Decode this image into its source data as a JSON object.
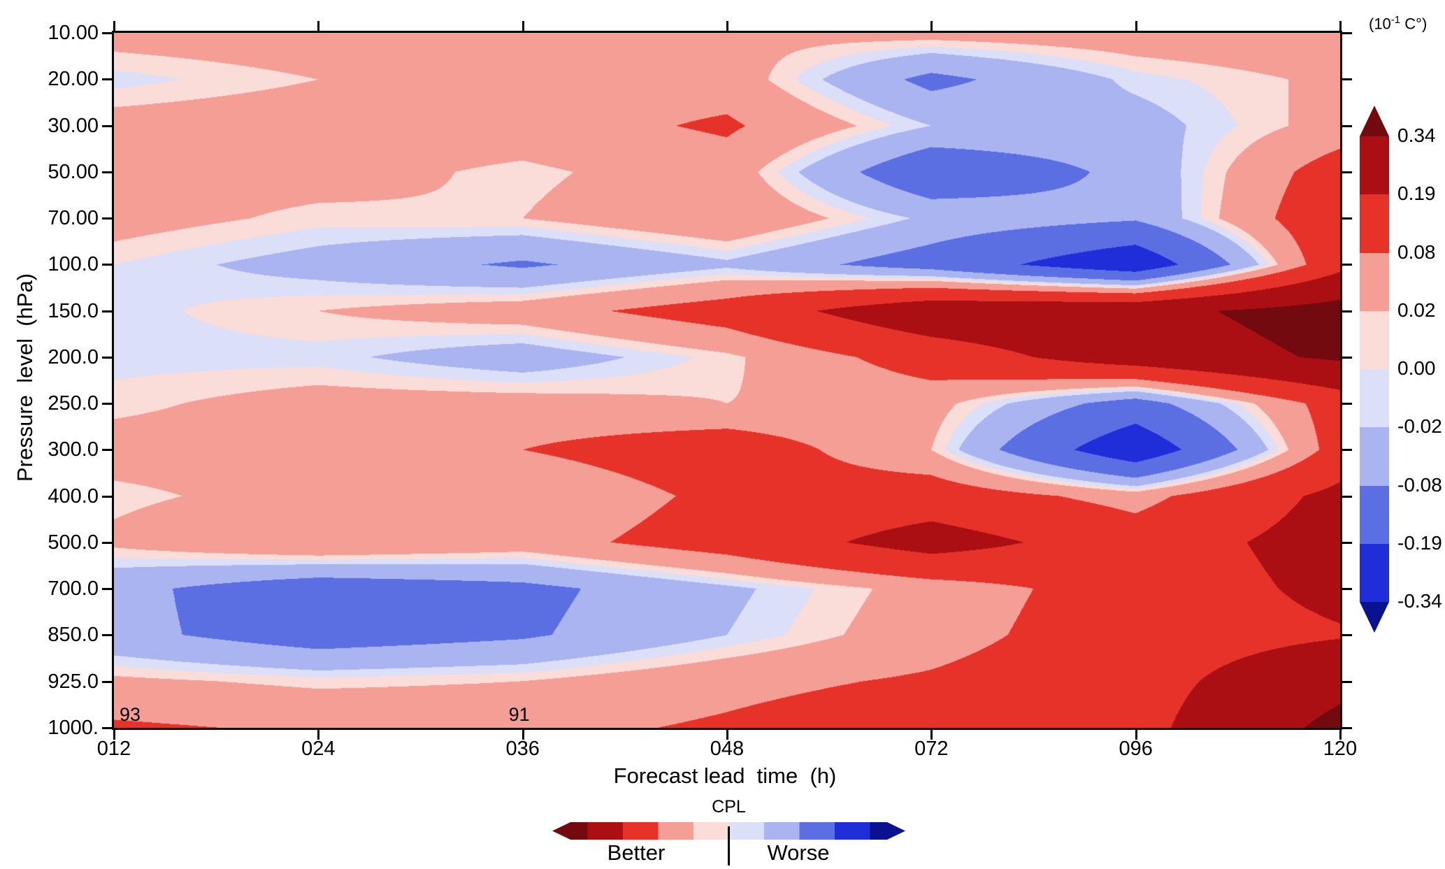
{
  "figure": {
    "background": "#ffffff",
    "unit": {
      "prefix": "(10",
      "exponent": "-1",
      "suffix": " C°)"
    },
    "legend": {
      "title": "CPL",
      "better": "Better",
      "worse": "Worse"
    }
  },
  "chart_data": {
    "type": "heatmap",
    "title": "",
    "xlabel": "Forecast lead  time  (h)",
    "ylabel": "Pressure  level  (hPa)",
    "x_ticks": [
      "012",
      "024",
      "036",
      "048",
      "072",
      "096",
      "120"
    ],
    "x_values_hours": [
      12,
      24,
      36,
      48,
      72,
      96,
      120
    ],
    "y_ticks": [
      "10.00",
      "20.00",
      "30.00",
      "50.00",
      "70.00",
      "100.0",
      "150.0",
      "200.0",
      "250.0",
      "300.0",
      "400.0",
      "500.0",
      "700.0",
      "850.0",
      "925.0",
      "1000."
    ],
    "y_values_hpa": [
      10,
      20,
      30,
      50,
      70,
      100,
      150,
      200,
      250,
      300,
      400,
      500,
      700,
      850,
      925,
      1000
    ],
    "unit_label": "(10^-1 C°)",
    "levels": [
      -0.34,
      -0.19,
      -0.08,
      -0.02,
      0.0,
      0.02,
      0.08,
      0.19,
      0.34
    ],
    "colorbar_tick_labels": [
      "0.34",
      "0.19",
      "0.08",
      "0.02",
      "0.00",
      "-0.02",
      "-0.08",
      "-0.19",
      "-0.34"
    ],
    "band_colors_neg_to_pos": [
      "#0a1290",
      "#1f2ed8",
      "#5b6fe3",
      "#aab4f0",
      "#dcdff8",
      "#fadcd8",
      "#f59e96",
      "#e63229",
      "#ab0f14",
      "#730a10"
    ],
    "grid_rows_top_to_bottom": [
      [
        0.04,
        0.05,
        0.05,
        0.03,
        0.04,
        0.05,
        0.06
      ],
      [
        -0.01,
        0.02,
        0.05,
        0.05,
        -0.1,
        -0.01,
        0.03
      ],
      [
        0.04,
        0.05,
        0.05,
        0.09,
        -0.02,
        -0.04,
        0.04
      ],
      [
        0.04,
        0.04,
        0.01,
        0.05,
        -0.15,
        -0.06,
        0.12
      ],
      [
        0.04,
        0.01,
        0.02,
        0.07,
        -0.03,
        -0.07,
        0.15
      ],
      [
        0.0,
        -0.04,
        -0.09,
        -0.03,
        -0.12,
        -0.28,
        0.15
      ],
      [
        -0.01,
        0.02,
        0.05,
        0.12,
        0.28,
        0.3,
        0.4
      ],
      [
        -0.01,
        -0.01,
        -0.05,
        0.01,
        0.12,
        0.26,
        0.36
      ],
      [
        0.01,
        0.04,
        0.04,
        0.02,
        0.04,
        -0.12,
        0.12
      ],
      [
        0.04,
        0.04,
        0.08,
        0.13,
        0.02,
        -0.28,
        0.12
      ],
      [
        0.01,
        0.04,
        0.02,
        0.1,
        0.13,
        0.05,
        0.22
      ],
      [
        0.03,
        0.08,
        0.05,
        0.12,
        0.24,
        0.13,
        0.24
      ],
      [
        -0.06,
        -0.13,
        -0.1,
        -0.03,
        0.04,
        0.12,
        0.22
      ],
      [
        -0.06,
        -0.12,
        -0.09,
        -0.02,
        0.05,
        0.13,
        0.18
      ],
      [
        0.03,
        0.01,
        0.02,
        0.06,
        0.09,
        0.14,
        0.3
      ],
      [
        0.09,
        0.07,
        0.06,
        0.09,
        0.13,
        0.15,
        0.38
      ]
    ],
    "annotations": [
      {
        "text": "93",
        "x_tick": "012",
        "y_level": "1000."
      },
      {
        "text": "91",
        "x_tick": "036",
        "y_level": "1000."
      }
    ],
    "legend_position": "right",
    "grid_lines": false
  }
}
